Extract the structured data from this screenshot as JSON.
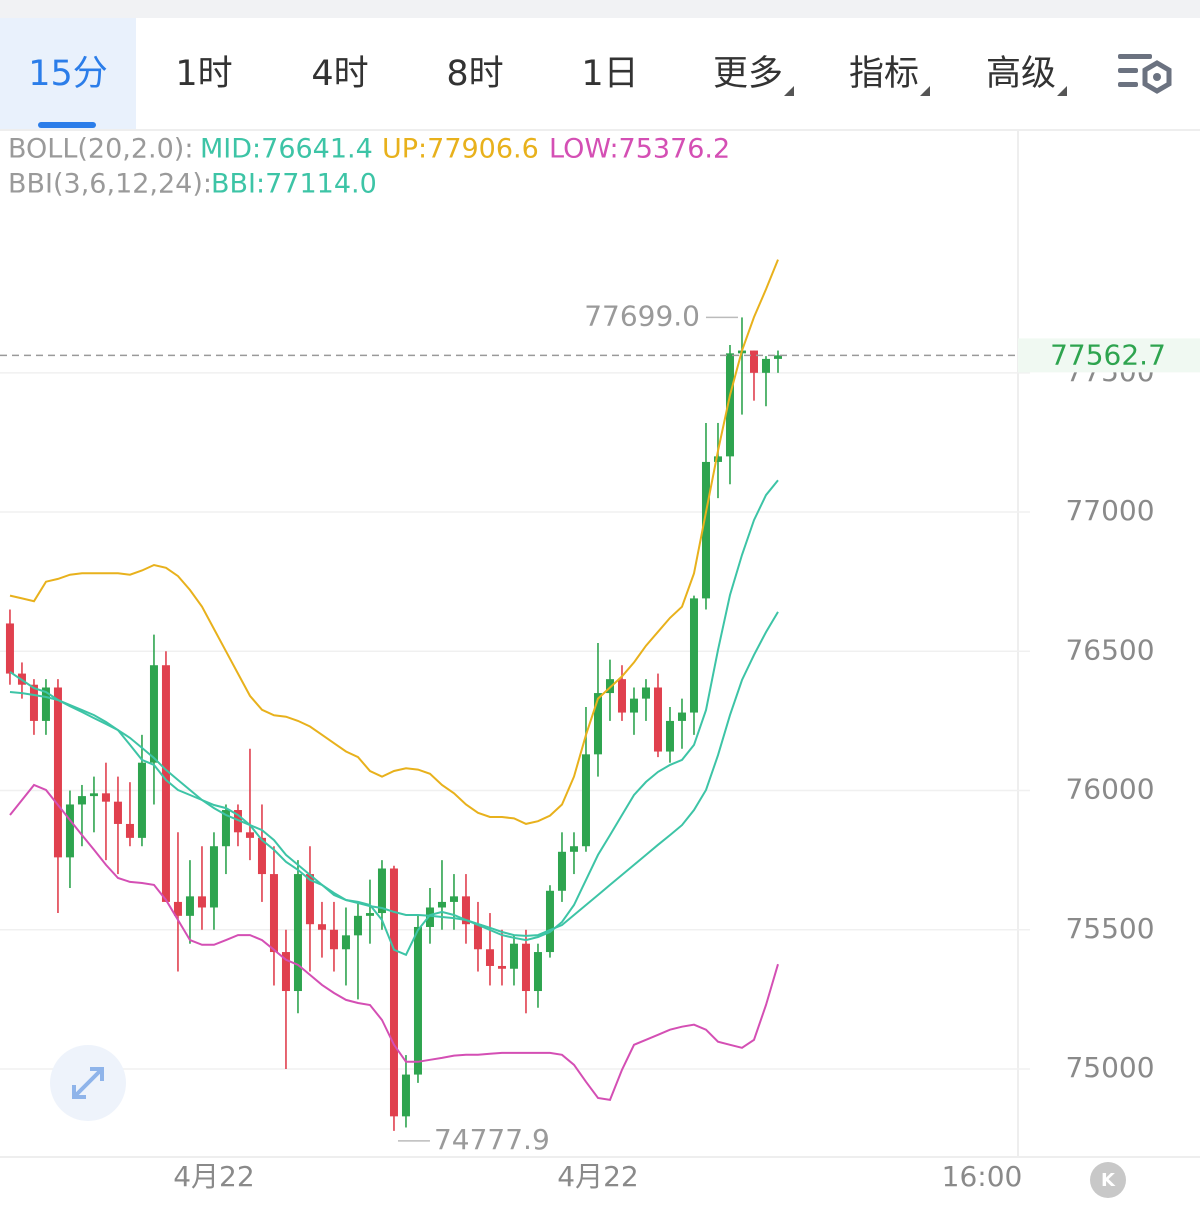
{
  "tabs": [
    "15分",
    "1时",
    "4时",
    "8时",
    "1日",
    "更多",
    "指标",
    "高级"
  ],
  "legend": {
    "boll_title": "BOLL(20,2.0):",
    "bbi_title": "BBI(3,6,12,24):"
  },
  "chart_data": {
    "type": "candlestick",
    "ylim": [
      74684,
      78372
    ],
    "yticks": [
      75000,
      75500,
      76000,
      76500,
      77000,
      77500
    ],
    "xlim": [
      -0.83,
      84
    ],
    "xticks": [
      {
        "value": 17,
        "label": "4月22"
      },
      {
        "value": 49,
        "label": "4月22"
      },
      {
        "value": 81,
        "label": "16:00"
      }
    ],
    "grid": true,
    "up_color": "#2ea44f",
    "down_color": "#e0404e",
    "open": [
      76600,
      76420,
      76380,
      76250,
      76370,
      75760,
      75950,
      75980,
      75990,
      75960,
      75880,
      75830,
      76100,
      76450,
      75600,
      75550,
      75620,
      75580,
      75800,
      75930,
      75850,
      75830,
      75700,
      75420,
      75280,
      75700,
      75520,
      75500,
      75430,
      75480,
      75550,
      75560,
      75720,
      74830,
      74980,
      75510,
      75580,
      75600,
      75620,
      75520,
      75430,
      75370,
      75360,
      75450,
      75280,
      75420,
      75640,
      75780,
      75800,
      76130,
      76350,
      76400,
      76280,
      76330,
      76370,
      76140,
      76250,
      76280,
      76690,
      77180,
      77200,
      77570,
      77580,
      77500,
      77550
    ],
    "high": [
      76650,
      76460,
      76400,
      76400,
      76400,
      76000,
      76020,
      76050,
      76100,
      76050,
      76030,
      76200,
      76560,
      76500,
      75850,
      75750,
      75800,
      75850,
      75950,
      75950,
      76150,
      75950,
      75800,
      75500,
      75750,
      75800,
      75600,
      75600,
      75580,
      75600,
      75680,
      75750,
      75730,
      75050,
      75550,
      75650,
      75750,
      75700,
      75700,
      75600,
      75560,
      75500,
      75480,
      75500,
      75450,
      75660,
      75850,
      75850,
      76300,
      76530,
      76470,
      76450,
      76370,
      76400,
      76420,
      76300,
      76330,
      76700,
      77320,
      77320,
      77600,
      77699,
      77580,
      77560,
      77580
    ],
    "low": [
      76380,
      76330,
      76200,
      76200,
      75560,
      75650,
      75800,
      75850,
      75750,
      75700,
      75800,
      75800,
      75950,
      75600,
      75350,
      75450,
      75500,
      75500,
      75700,
      75800,
      75750,
      75600,
      75300,
      75000,
      75200,
      75350,
      75400,
      75350,
      75300,
      75250,
      75450,
      75500,
      74777.9,
      74790,
      74950,
      75450,
      75500,
      75500,
      75450,
      75350,
      75300,
      75300,
      75300,
      75200,
      75220,
      75400,
      75600,
      75700,
      75780,
      76050,
      76250,
      76250,
      76200,
      76250,
      76120,
      76100,
      76150,
      76200,
      76650,
      77050,
      77100,
      77350,
      77400,
      77380,
      77500
    ],
    "close": [
      76420,
      76380,
      76250,
      76370,
      75760,
      75950,
      75980,
      75990,
      75960,
      75880,
      75830,
      76100,
      76450,
      75600,
      75550,
      75620,
      75580,
      75800,
      75930,
      75850,
      75830,
      75700,
      75420,
      75280,
      75700,
      75520,
      75500,
      75430,
      75480,
      75550,
      75560,
      75720,
      74830,
      74980,
      75510,
      75580,
      75600,
      75620,
      75520,
      75430,
      75370,
      75360,
      75450,
      75280,
      75420,
      75640,
      75780,
      75800,
      76130,
      76350,
      76400,
      76280,
      76330,
      76370,
      76140,
      76250,
      76280,
      76690,
      77180,
      77200,
      77570,
      77580,
      77500,
      77550,
      77562.7
    ],
    "series": [
      {
        "name": "UP",
        "label": "UP:77906.6",
        "color": "#e8b11c",
        "values": [
          76700,
          76690,
          76680,
          76750,
          76760,
          76775,
          76780,
          76780,
          76780,
          76780,
          76775,
          76790,
          76810,
          76800,
          76770,
          76720,
          76660,
          76580,
          76500,
          76420,
          76340,
          76290,
          76270,
          76265,
          76250,
          76230,
          76200,
          76170,
          76140,
          76120,
          76070,
          76050,
          76070,
          76080,
          76075,
          76060,
          76020,
          75990,
          75950,
          75920,
          75905,
          75905,
          75900,
          75880,
          75890,
          75910,
          75950,
          76050,
          76200,
          76330,
          76370,
          76410,
          76460,
          76520,
          76570,
          76620,
          76660,
          76780,
          77000,
          77220,
          77420,
          77580,
          77700,
          77800,
          77906.6
        ]
      },
      {
        "name": "MID",
        "label": "MID:76641.4",
        "color": "#3dc4a6",
        "values": [
          76354,
          76350,
          76343,
          76336,
          76325,
          76303,
          76282,
          76260,
          76239,
          76217,
          76189,
          76153,
          76117,
          76074,
          76038,
          76002,
          75966,
          75937,
          75912,
          75894,
          75876,
          75858,
          75822,
          75769,
          75733,
          75697,
          75661,
          75625,
          75607,
          75596,
          75585,
          75578,
          75564,
          75553,
          75553,
          75550,
          75546,
          75542,
          75535,
          75521,
          75507,
          75492,
          75481,
          75478,
          75481,
          75499,
          75517,
          75553,
          75589,
          75625,
          75661,
          75697,
          75733,
          75769,
          75805,
          75840,
          75876,
          75930,
          76002,
          76127,
          76271,
          76397,
          76487,
          76569,
          76641.4
        ]
      },
      {
        "name": "LOW",
        "label": "LOW:75376.2",
        "color": "#d44fb4",
        "values": [
          75912,
          75966,
          76020,
          76002,
          75948,
          75894,
          75840,
          75787,
          75733,
          75686,
          75672,
          75668,
          75661,
          75607,
          75535,
          75463,
          75446,
          75446,
          75463,
          75481,
          75481,
          75463,
          75428,
          75392,
          75374,
          75338,
          75302,
          75273,
          75248,
          75237,
          75230,
          75176,
          75087,
          75026,
          75026,
          75033,
          75040,
          75048,
          75051,
          75051,
          75055,
          75058,
          75058,
          75058,
          75058,
          75058,
          75051,
          75015,
          74954,
          74896,
          74889,
          74997,
          75087,
          75105,
          75123,
          75141,
          75152,
          75159,
          75141,
          75098,
          75087,
          75076,
          75105,
          75230,
          75376.2
        ]
      },
      {
        "name": "BBI",
        "label": "BBI:77114.0",
        "color": "#3dc4a6",
        "values": [
          76426,
          76397,
          76368,
          76354,
          76325,
          76307,
          76289,
          76271,
          76246,
          76217,
          76164,
          76110,
          76092,
          76038,
          76002,
          75984,
          75966,
          75948,
          75937,
          75912,
          75876,
          75822,
          75787,
          75744,
          75715,
          75679,
          75661,
          75632,
          75607,
          75600,
          75589,
          75535,
          75428,
          75410,
          75499,
          75553,
          75564,
          75553,
          75535,
          75517,
          75499,
          75481,
          75471,
          75463,
          75474,
          75492,
          75528,
          75589,
          75679,
          75769,
          75840,
          75912,
          75984,
          76031,
          76067,
          76092,
          76110,
          76164,
          76289,
          76505,
          76702,
          76846,
          76971,
          77061,
          77114.0
        ]
      }
    ],
    "last_price": 77562.7,
    "annotations": [
      {
        "text": "77699.0",
        "value": 77699
      },
      {
        "text": "74777.9",
        "value": 74777.9
      }
    ]
  }
}
